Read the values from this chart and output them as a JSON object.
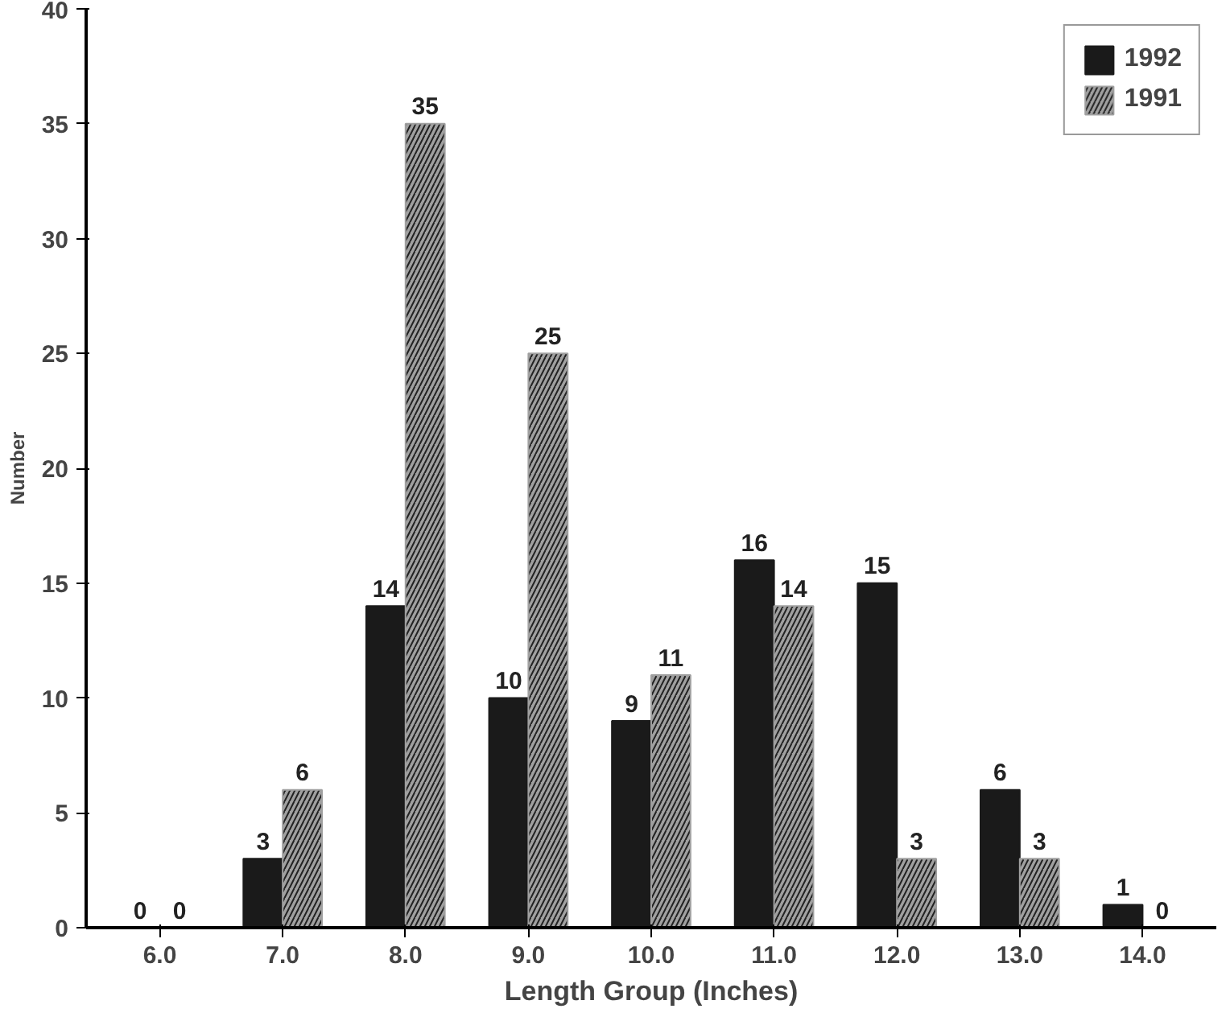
{
  "chart_data": {
    "type": "bar",
    "xlabel": "Length Group (Inches)",
    "ylabel": "Number",
    "categories": [
      "6.0",
      "7.0",
      "8.0",
      "9.0",
      "10.0",
      "11.0",
      "12.0",
      "13.0",
      "14.0"
    ],
    "series": [
      {
        "name": "1992",
        "color": "#1a1a1a",
        "values": [
          0,
          3,
          14,
          10,
          9,
          16,
          15,
          6,
          1
        ]
      },
      {
        "name": "1991",
        "color": "#a0a0a0",
        "values": [
          0,
          6,
          35,
          25,
          11,
          14,
          3,
          3,
          0
        ]
      }
    ],
    "ylim": [
      0,
      40
    ],
    "yticks": [
      0,
      5,
      10,
      15,
      20,
      25,
      30,
      35,
      40
    ],
    "grid": false,
    "legend": "top right",
    "data_labels": true
  }
}
